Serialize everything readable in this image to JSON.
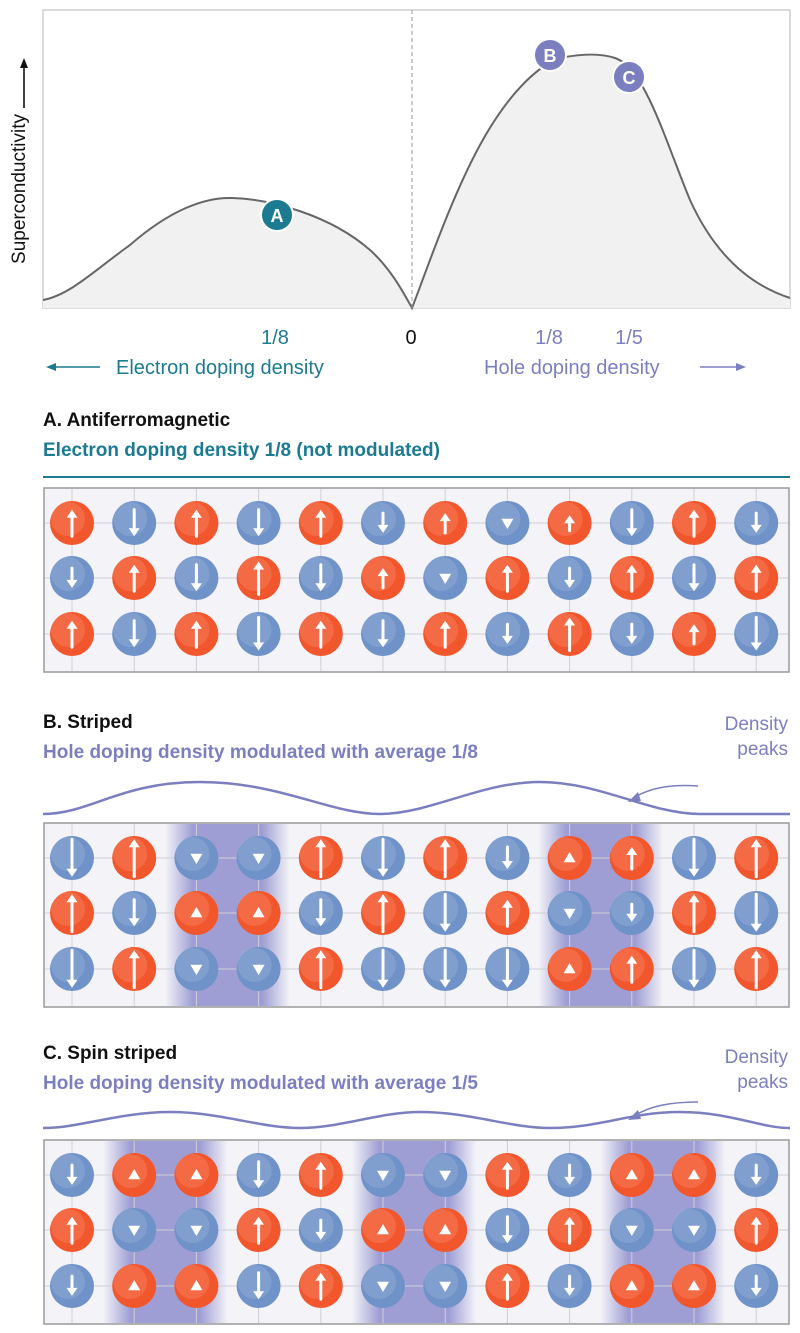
{
  "colors": {
    "electron": "#1c7a91",
    "hole": "#7b7fbf",
    "spin_up": "#f2562c",
    "spin_down": "#6f92c9",
    "stripe": "#9a9ad2",
    "curve": "#666666",
    "fill": "#f1f1f1",
    "grid": "#cfcfd6"
  },
  "top_chart": {
    "ylabel": "Superconductivity",
    "zero_label": "0",
    "electron_tick": "1/8",
    "hole_ticks": [
      "1/8",
      "1/5"
    ],
    "electron_axis_label": "Electron doping density",
    "hole_axis_label": "Hole doping density",
    "markers": [
      {
        "label": "A",
        "side": "electron",
        "color": "#1c7a91"
      },
      {
        "label": "B",
        "side": "hole",
        "color": "#7b7fbf"
      },
      {
        "label": "C",
        "side": "hole",
        "color": "#7b7fbf"
      }
    ]
  },
  "panels": [
    {
      "key": "A",
      "title": "A. Antiferromagnetic",
      "subtitle": "Electron doping density 1/8 (not modulated)",
      "subtitle_color": "#1c7a91",
      "density_label_1": "",
      "density_label_2": "",
      "stripes": [],
      "wave": "none",
      "rows": [
        [
          "U",
          "D",
          "U",
          "D",
          "U",
          "D",
          "U",
          "D",
          "U",
          "D",
          "U",
          "D"
        ],
        [
          "D",
          "U",
          "D",
          "U",
          "D",
          "U",
          "D",
          "U",
          "D",
          "U",
          "D",
          "U"
        ],
        [
          "U",
          "D",
          "U",
          "D",
          "U",
          "D",
          "U",
          "D",
          "U",
          "D",
          "U",
          "D"
        ]
      ],
      "sizes": [
        [
          0.6,
          0.6,
          0.6,
          0.6,
          0.6,
          0.45,
          0.45,
          0.25,
          0.35,
          0.6,
          0.6,
          0.45
        ],
        [
          0.45,
          0.6,
          0.6,
          0.75,
          0.6,
          0.45,
          0.25,
          0.6,
          0.45,
          0.6,
          0.6,
          0.6
        ],
        [
          0.6,
          0.6,
          0.6,
          0.75,
          0.6,
          0.6,
          0.6,
          0.45,
          0.75,
          0.45,
          0.45,
          0.75
        ]
      ]
    },
    {
      "key": "B",
      "title": "B. Striped",
      "subtitle": "Hole doping density modulated with average 1/8",
      "subtitle_color": "#7b7fbf",
      "density_label_1": "Density",
      "density_label_2": "peaks",
      "stripes": [
        2.5,
        8.5
      ],
      "wave": "B",
      "rows": [
        [
          "D",
          "U",
          "D",
          "D",
          "U",
          "D",
          "U",
          "D",
          "U",
          "U",
          "D",
          "U"
        ],
        [
          "U",
          "D",
          "U",
          "U",
          "D",
          "U",
          "D",
          "U",
          "D",
          "D",
          "U",
          "D"
        ],
        [
          "D",
          "U",
          "D",
          "D",
          "U",
          "D",
          "D",
          "D",
          "U",
          "U",
          "D",
          "U"
        ]
      ],
      "sizes": [
        [
          0.85,
          0.85,
          0.3,
          0.25,
          0.85,
          0.85,
          0.85,
          0.5,
          0.25,
          0.5,
          0.85,
          0.85
        ],
        [
          0.85,
          0.6,
          0.25,
          0.3,
          0.6,
          0.85,
          0.85,
          0.6,
          0.3,
          0.4,
          0.85,
          0.85
        ],
        [
          0.85,
          0.85,
          0.25,
          0.3,
          0.85,
          0.85,
          0.85,
          0.85,
          0.25,
          0.6,
          0.85,
          0.85
        ]
      ]
    },
    {
      "key": "C",
      "title": "C. Spin striped",
      "subtitle": "Hole doping density modulated with average 1/5",
      "subtitle_color": "#7b7fbf",
      "density_label_1": "Density",
      "density_label_2": "peaks",
      "stripes": [
        1.5,
        5.5,
        9.5
      ],
      "wave": "C",
      "rows": [
        [
          "D",
          "U",
          "U",
          "D",
          "U",
          "D",
          "D",
          "U",
          "D",
          "U",
          "U",
          "D"
        ],
        [
          "U",
          "D",
          "D",
          "U",
          "D",
          "U",
          "U",
          "D",
          "U",
          "D",
          "D",
          "U"
        ],
        [
          "D",
          "U",
          "U",
          "D",
          "U",
          "D",
          "D",
          "U",
          "D",
          "U",
          "U",
          "D"
        ]
      ],
      "sizes": [
        [
          0.45,
          0.25,
          0.25,
          0.6,
          0.6,
          0.25,
          0.25,
          0.6,
          0.45,
          0.25,
          0.25,
          0.45
        ],
        [
          0.6,
          0.25,
          0.3,
          0.6,
          0.45,
          0.25,
          0.25,
          0.6,
          0.6,
          0.25,
          0.25,
          0.6
        ],
        [
          0.45,
          0.25,
          0.25,
          0.6,
          0.6,
          0.25,
          0.25,
          0.6,
          0.45,
          0.25,
          0.25,
          0.45
        ]
      ]
    }
  ]
}
